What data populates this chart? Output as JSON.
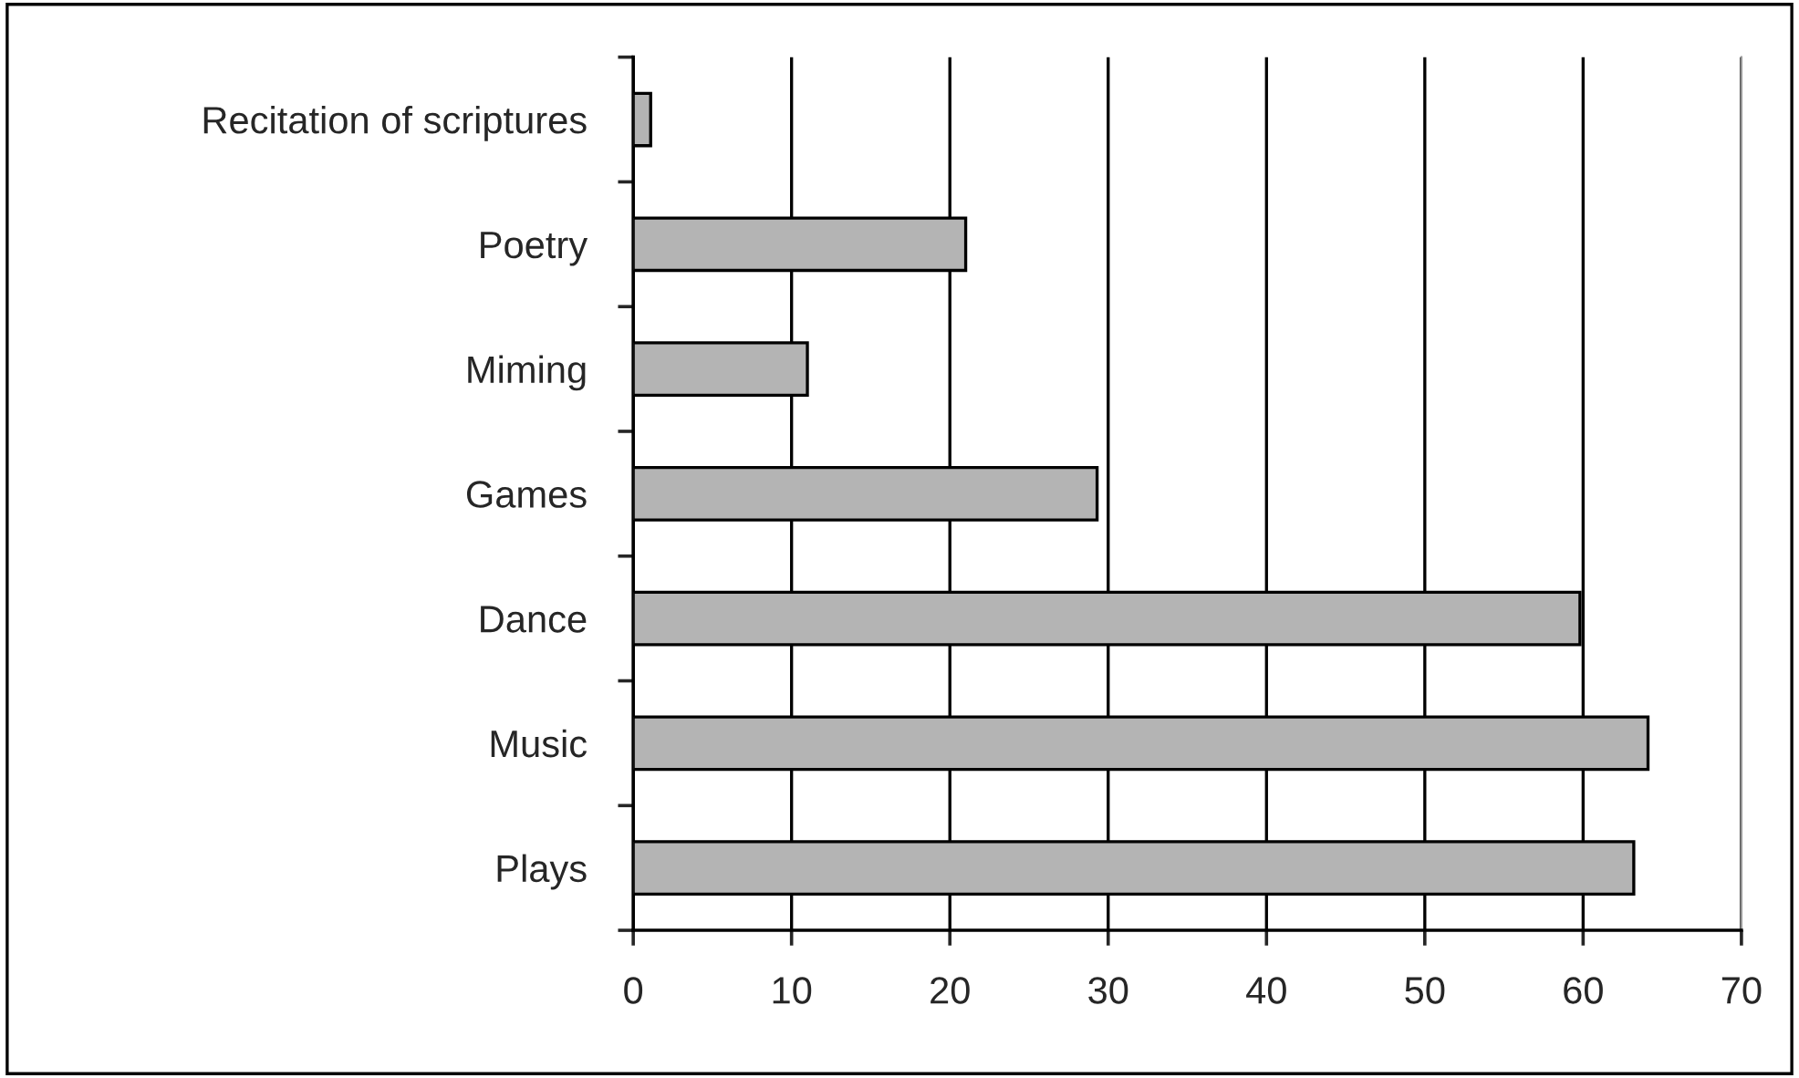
{
  "chart_data": {
    "type": "bar",
    "orientation": "horizontal",
    "categories": [
      "Recitation of scriptures",
      "Poetry",
      "Miming",
      "Games",
      "Dance",
      "Music",
      "Plays"
    ],
    "values": [
      1.1,
      21,
      11,
      29.3,
      59.8,
      64.1,
      63.2
    ],
    "color": "#b4b4b4",
    "xlim": [
      0,
      70
    ],
    "xticks": [
      0,
      10,
      20,
      30,
      40,
      50,
      60,
      70
    ],
    "grid": "x",
    "legend": false
  }
}
